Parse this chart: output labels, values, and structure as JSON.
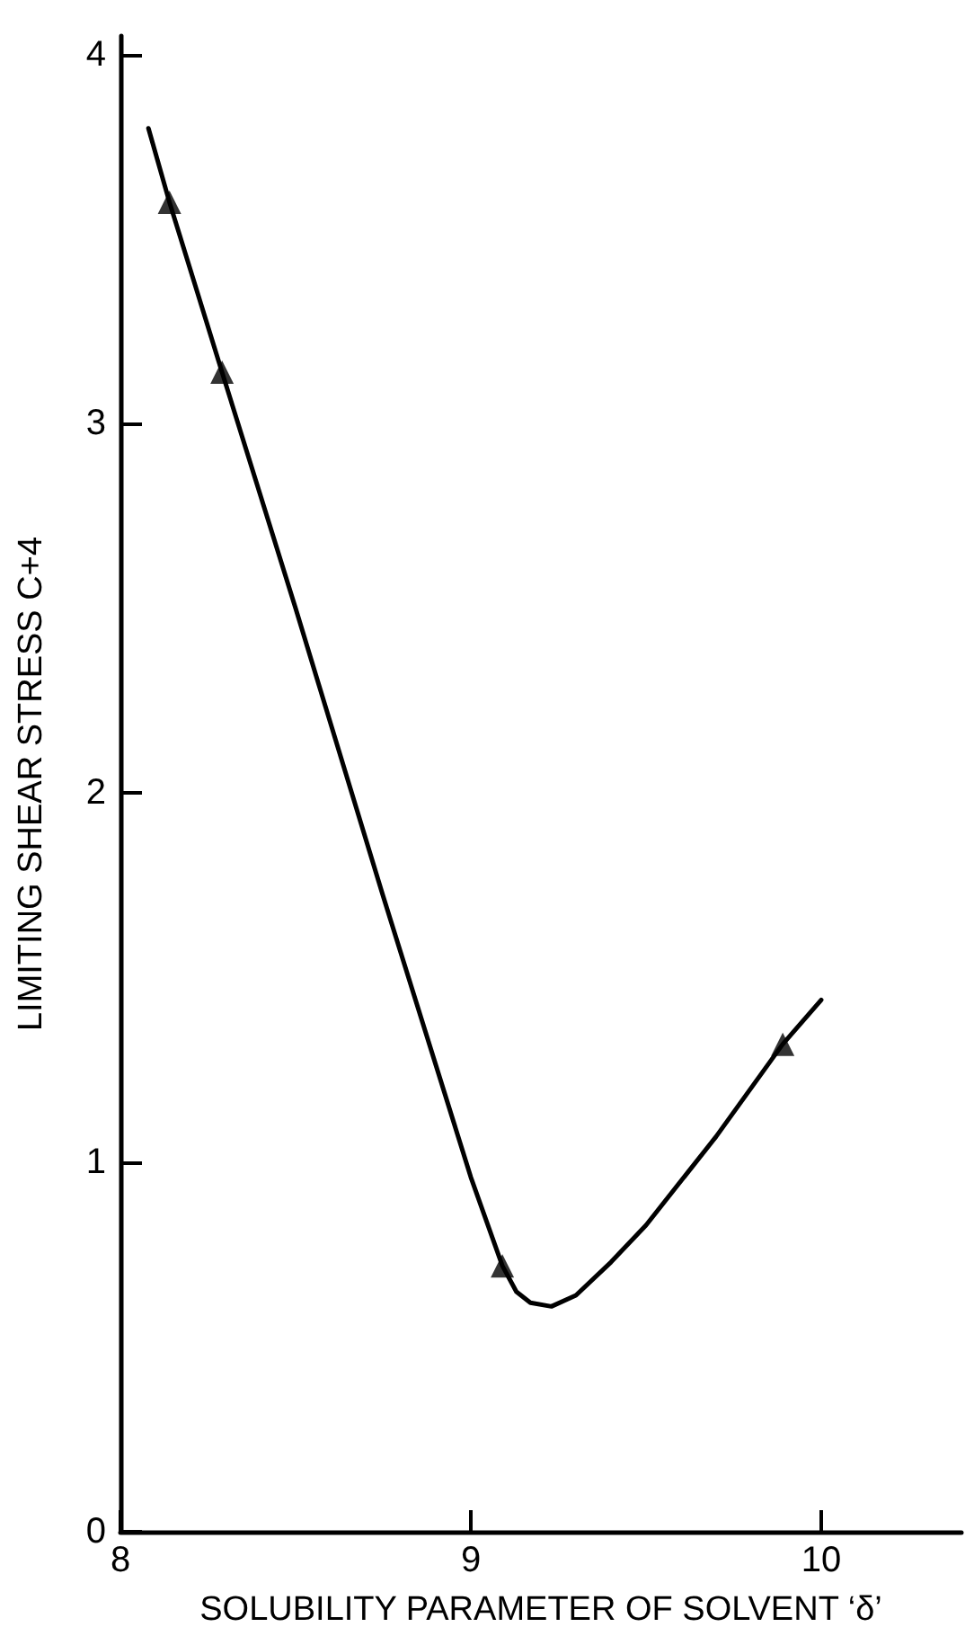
{
  "chart_data": {
    "type": "line",
    "xlabel": "SOLUBILITY PARAMETER OF SOLVENT ‘δ’",
    "ylabel": "LIMITING SHEAR STRESS C+4",
    "xlim": [
      8,
      10.4
    ],
    "xticks": [
      8,
      9,
      10
    ],
    "ylim": [
      0,
      4.05
    ],
    "yticks": [
      0,
      1,
      2,
      3,
      4
    ],
    "grid": false,
    "series": [
      {
        "color": "#000000",
        "marker": "none",
        "line_style": "solid",
        "x": [
          8.08,
          8.14,
          8.29,
          8.5,
          8.75,
          9.0,
          9.09,
          9.13,
          9.17,
          9.23,
          9.3,
          9.4,
          9.5,
          9.7,
          9.89,
          10.0
        ],
        "values": [
          3.8,
          3.6,
          3.14,
          2.5,
          1.72,
          0.96,
          0.72,
          0.65,
          0.62,
          0.61,
          0.64,
          0.73,
          0.83,
          1.07,
          1.32,
          1.44
        ]
      },
      {
        "type": "scatter",
        "color": "#000000",
        "marker": "triangle",
        "x": [
          8.14,
          8.29,
          9.09,
          9.89
        ],
        "values": [
          3.6,
          3.14,
          0.72,
          1.32
        ]
      }
    ]
  }
}
